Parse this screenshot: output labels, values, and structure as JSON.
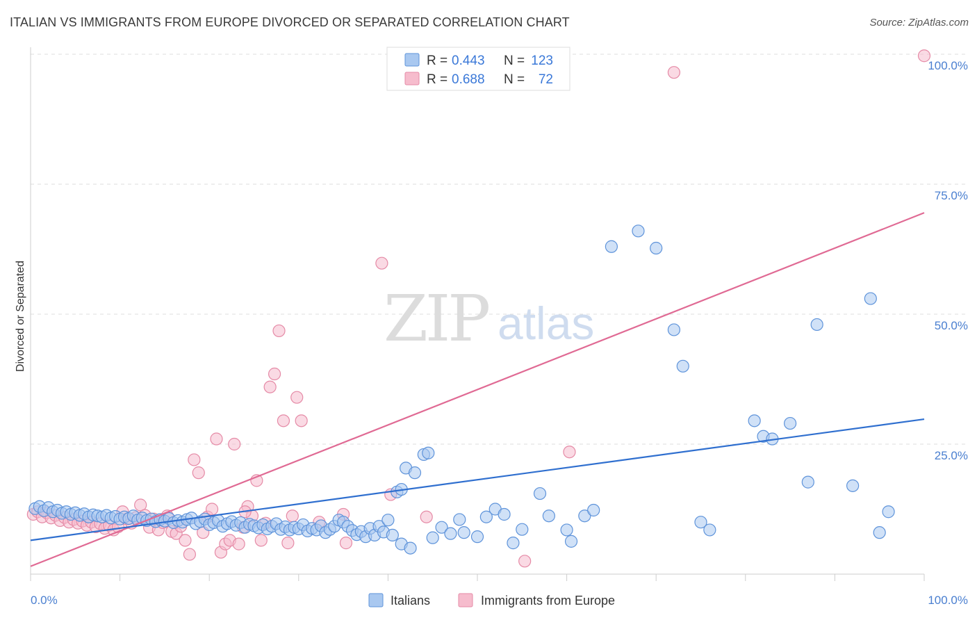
{
  "header": {
    "title": "ITALIAN VS IMMIGRANTS FROM EUROPE DIVORCED OR SEPARATED CORRELATION CHART",
    "source": "Source: ZipAtlas.com"
  },
  "watermark": {
    "zip": "ZIP",
    "atlas": "atlas"
  },
  "colors": {
    "blue_fill": "#a9c8f0",
    "blue_stroke": "#5e93da",
    "blue_line": "#2f6fcf",
    "pink_fill": "#f6bccd",
    "pink_stroke": "#e58aa6",
    "pink_line": "#e06a94",
    "tick_text": "#4a7fd0",
    "grid": "#dddddd"
  },
  "legend": {
    "rows": [
      {
        "r_label": "R =",
        "r_value": "0.443",
        "n_label": "N =",
        "n_value": "123"
      },
      {
        "r_label": "R =",
        "r_value": "0.688",
        "n_label": "N =",
        "n_value": "72"
      }
    ]
  },
  "bottom_legend": {
    "series": [
      "Italians",
      "Immigrants from Europe"
    ]
  },
  "chart_data": {
    "type": "scatter",
    "title": "ITALIAN VS IMMIGRANTS FROM EUROPE DIVORCED OR SEPARATED CORRELATION CHART",
    "xlabel": "",
    "ylabel": "Divorced or Separated",
    "xlim": [
      0,
      100
    ],
    "ylim": [
      0,
      100
    ],
    "x_tick_labels": [
      "0.0%",
      "100.0%"
    ],
    "y_tick_labels": [
      "25.0%",
      "50.0%",
      "75.0%",
      "100.0%"
    ],
    "y_ticks": [
      25,
      50,
      75,
      100
    ],
    "grid": true,
    "legend_placement": "top-center",
    "series": [
      {
        "name": "Italians",
        "r": 0.443,
        "n": 123,
        "trend": {
          "x": [
            0,
            100
          ],
          "y": [
            6.5,
            29.8
          ]
        },
        "points": [
          [
            0.5,
            12.6
          ],
          [
            1,
            13
          ],
          [
            1.5,
            12.2
          ],
          [
            2,
            12.8
          ],
          [
            2.5,
            12
          ],
          [
            3,
            12.3
          ],
          [
            3.5,
            11.7
          ],
          [
            4,
            12
          ],
          [
            4.5,
            11.5
          ],
          [
            5,
            11.8
          ],
          [
            5.5,
            11.3
          ],
          [
            6,
            11.6
          ],
          [
            6.5,
            11
          ],
          [
            7,
            11.4
          ],
          [
            7.5,
            11.2
          ],
          [
            8,
            11
          ],
          [
            8.5,
            11.3
          ],
          [
            9,
            10.8
          ],
          [
            9.5,
            11.1
          ],
          [
            10,
            10.6
          ],
          [
            10.5,
            11
          ],
          [
            11,
            10.7
          ],
          [
            11.5,
            11.2
          ],
          [
            12,
            10.4
          ],
          [
            12.5,
            10.8
          ],
          [
            13,
            10.3
          ],
          [
            13.5,
            10.6
          ],
          [
            14,
            10.1
          ],
          [
            14.5,
            10.5
          ],
          [
            15,
            10.2
          ],
          [
            15.5,
            10.7
          ],
          [
            16,
            9.9
          ],
          [
            16.5,
            10.3
          ],
          [
            17,
            10
          ],
          [
            17.5,
            10.5
          ],
          [
            18,
            10.8
          ],
          [
            18.5,
            9.7
          ],
          [
            19,
            10.1
          ],
          [
            19.5,
            10.6
          ],
          [
            20,
            9.5
          ],
          [
            20.5,
            9.9
          ],
          [
            21,
            10.3
          ],
          [
            21.5,
            9.2
          ],
          [
            22,
            9.7
          ],
          [
            22.5,
            10.1
          ],
          [
            23,
            9.4
          ],
          [
            23.5,
            9.9
          ],
          [
            24,
            9
          ],
          [
            24.5,
            9.6
          ],
          [
            25,
            9.3
          ],
          [
            25.5,
            8.9
          ],
          [
            26,
            9.5
          ],
          [
            26.5,
            8.7
          ],
          [
            27,
            9.2
          ],
          [
            27.5,
            9.7
          ],
          [
            28,
            8.6
          ],
          [
            28.5,
            9.1
          ],
          [
            29,
            8.5
          ],
          [
            29.5,
            9
          ],
          [
            30,
            8.7
          ],
          [
            30.5,
            9.5
          ],
          [
            31,
            8.3
          ],
          [
            31.5,
            8.8
          ],
          [
            32,
            8.5
          ],
          [
            32.5,
            9.3
          ],
          [
            33,
            8
          ],
          [
            33.5,
            8.6
          ],
          [
            34,
            9.2
          ],
          [
            34.5,
            10.4
          ],
          [
            35,
            10
          ],
          [
            35.5,
            9.2
          ],
          [
            36,
            8.4
          ],
          [
            36.5,
            7.6
          ],
          [
            37,
            8.2
          ],
          [
            37.5,
            7.2
          ],
          [
            38,
            8.8
          ],
          [
            38.5,
            7.5
          ],
          [
            39,
            9.2
          ],
          [
            39.5,
            8.1
          ],
          [
            40,
            10.4
          ],
          [
            41,
            15.8
          ],
          [
            41.5,
            16.3
          ],
          [
            42,
            20.4
          ],
          [
            43,
            19.5
          ],
          [
            44,
            23
          ],
          [
            44.5,
            23.3
          ],
          [
            40.5,
            7.5
          ],
          [
            41.5,
            5.8
          ],
          [
            42.5,
            5
          ],
          [
            45,
            7
          ],
          [
            46,
            9
          ],
          [
            47,
            7.8
          ],
          [
            48,
            10.5
          ],
          [
            48.5,
            8
          ],
          [
            50,
            7.2
          ],
          [
            51,
            11
          ],
          [
            52,
            12.5
          ],
          [
            53,
            11.5
          ],
          [
            54,
            6
          ],
          [
            55,
            8.6
          ],
          [
            57,
            15.5
          ],
          [
            58,
            11.2
          ],
          [
            60,
            8.5
          ],
          [
            60.5,
            6.3
          ],
          [
            62,
            11.2
          ],
          [
            63,
            12.3
          ],
          [
            65,
            63
          ],
          [
            68,
            66
          ],
          [
            70,
            62.7
          ],
          [
            72,
            47
          ],
          [
            73,
            40
          ],
          [
            75,
            10
          ],
          [
            76,
            8.5
          ],
          [
            81,
            29.5
          ],
          [
            82,
            26.5
          ],
          [
            83,
            26
          ],
          [
            85,
            29
          ],
          [
            87,
            17.7
          ],
          [
            88,
            48
          ],
          [
            92,
            17
          ],
          [
            94,
            53
          ],
          [
            95,
            8
          ],
          [
            96,
            12
          ]
        ]
      },
      {
        "name": "Immigrants from Europe",
        "r": 0.688,
        "n": 72,
        "trend": {
          "x": [
            0,
            100
          ],
          "y": [
            1.5,
            69.5
          ]
        },
        "points": [
          [
            0.3,
            11.5
          ],
          [
            0.8,
            12
          ],
          [
            1.3,
            11
          ],
          [
            1.8,
            11.8
          ],
          [
            2.3,
            10.8
          ],
          [
            2.8,
            11.3
          ],
          [
            3.3,
            10.3
          ],
          [
            3.8,
            10.9
          ],
          [
            4.3,
            10
          ],
          [
            4.8,
            10.5
          ],
          [
            5.3,
            9.8
          ],
          [
            5.8,
            10.2
          ],
          [
            6.3,
            9.4
          ],
          [
            6.8,
            10
          ],
          [
            7.3,
            9.1
          ],
          [
            7.8,
            9.7
          ],
          [
            8.3,
            8.8
          ],
          [
            8.8,
            9.4
          ],
          [
            9.3,
            8.5
          ],
          [
            9.8,
            9.1
          ],
          [
            10.3,
            12
          ],
          [
            10.8,
            10.6
          ],
          [
            11.3,
            9.8
          ],
          [
            11.8,
            10.9
          ],
          [
            12.3,
            13.3
          ],
          [
            12.8,
            11.3
          ],
          [
            13.3,
            9
          ],
          [
            13.8,
            10.6
          ],
          [
            14.3,
            8.5
          ],
          [
            14.8,
            9.9
          ],
          [
            15.3,
            11.2
          ],
          [
            15.8,
            8.2
          ],
          [
            16.3,
            7.8
          ],
          [
            16.8,
            9.2
          ],
          [
            17.3,
            6.5
          ],
          [
            17.8,
            3.8
          ],
          [
            18.3,
            22
          ],
          [
            18.8,
            19.5
          ],
          [
            19.3,
            8
          ],
          [
            19.8,
            11
          ],
          [
            20.3,
            12.5
          ],
          [
            20.8,
            26
          ],
          [
            21.3,
            4.2
          ],
          [
            21.8,
            5.8
          ],
          [
            22.3,
            6.5
          ],
          [
            22.8,
            25
          ],
          [
            23.3,
            5.8
          ],
          [
            23.8,
            9
          ],
          [
            24.3,
            13
          ],
          [
            24.8,
            11.2
          ],
          [
            25.3,
            18
          ],
          [
            25.8,
            6.5
          ],
          [
            26.3,
            9.8
          ],
          [
            26.8,
            36
          ],
          [
            27.3,
            38.5
          ],
          [
            27.8,
            46.8
          ],
          [
            28.3,
            29.5
          ],
          [
            28.8,
            6
          ],
          [
            29.3,
            11.2
          ],
          [
            29.8,
            34
          ],
          [
            30.3,
            29.5
          ],
          [
            32.3,
            10
          ],
          [
            35.3,
            6
          ],
          [
            39.3,
            59.8
          ],
          [
            40.3,
            15.3
          ],
          [
            44.3,
            11
          ],
          [
            55.3,
            2.5
          ],
          [
            60.3,
            23.5
          ],
          [
            72,
            96.5
          ],
          [
            100,
            99.7
          ],
          [
            24,
            12
          ],
          [
            35,
            11.5
          ]
        ]
      }
    ]
  }
}
